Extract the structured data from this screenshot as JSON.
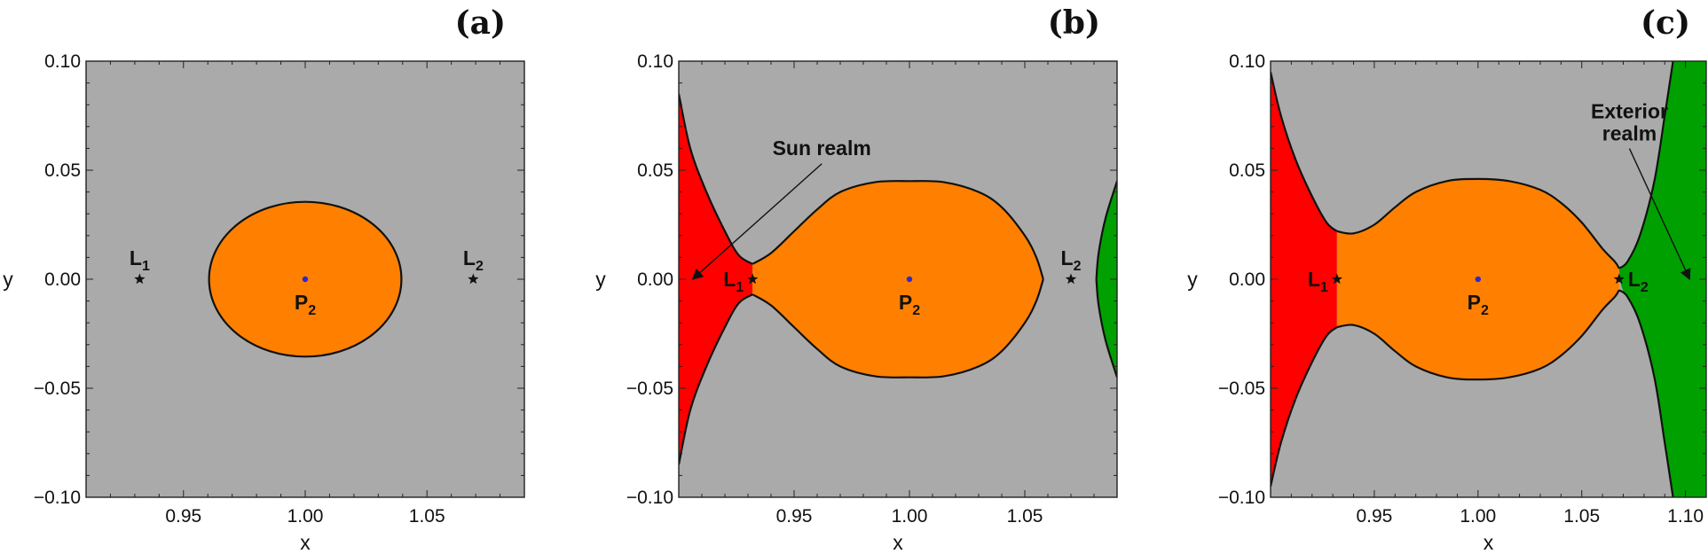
{
  "chart_data": [
    {
      "panel": "(a)",
      "type": "area",
      "xlabel": "x",
      "ylabel": "y",
      "xlim": [
        0.91,
        1.09
      ],
      "ylim": [
        -0.1,
        0.1
      ],
      "xticks": [
        0.95,
        1.0,
        1.05
      ],
      "xtick_labels": [
        "0.95",
        "1.00",
        "1.05"
      ],
      "yticks": [
        0.1,
        0.05,
        0.0,
        -0.05,
        -0.1
      ],
      "ytick_labels": [
        "0.10",
        "0.05",
        "0.00",
        "−0.05",
        "−0.10"
      ],
      "regions": [
        {
          "kind": "forbidden",
          "color": "#aaaaaa"
        },
        {
          "kind": "ellipse",
          "color": "#ff8000",
          "center": [
            1.0,
            0.0
          ],
          "rx": 0.0395,
          "ry": 0.0355
        }
      ],
      "points": [
        {
          "name": "L",
          "sub": "1",
          "x": 0.932,
          "y": 0.0,
          "marker": "star",
          "label_pos": "above"
        },
        {
          "name": "L",
          "sub": "2",
          "x": 1.069,
          "y": 0.0,
          "marker": "star",
          "label_pos": "above"
        },
        {
          "name": "P",
          "sub": "2",
          "x": 1.0,
          "y": 0.0,
          "marker": "dot",
          "color": "#2a2ad0",
          "label_pos": "below"
        }
      ],
      "annotations": []
    },
    {
      "panel": "(b)",
      "type": "area",
      "xlabel": "x",
      "ylabel": "y",
      "xlim": [
        0.9,
        1.09
      ],
      "ylim": [
        -0.1,
        0.1
      ],
      "xticks": [
        0.95,
        1.0,
        1.05
      ],
      "xtick_labels": [
        "0.95",
        "1.00",
        "1.05"
      ],
      "yticks": [
        0.1,
        0.05,
        0.0,
        -0.05,
        -0.1
      ],
      "ytick_labels": [
        "0.10",
        "0.05",
        "0.00",
        "−0.05",
        "−0.10"
      ],
      "regions": [
        {
          "kind": "forbidden",
          "color": "#aaaaaa"
        },
        {
          "kind": "red",
          "color": "#ff0000",
          "boundary": [
            [
              0.9,
              0.085
            ],
            [
              0.905,
              0.06
            ],
            [
              0.912,
              0.04
            ],
            [
              0.92,
              0.022
            ],
            [
              0.926,
              0.011
            ],
            [
              0.932,
              0.007
            ]
          ]
        },
        {
          "kind": "orange",
          "color": "#ff8000",
          "upper": [
            [
              0.932,
              0.007
            ],
            [
              0.94,
              0.012
            ],
            [
              0.95,
              0.022
            ],
            [
              0.96,
              0.032
            ],
            [
              0.97,
              0.04
            ],
            [
              0.985,
              0.0445
            ],
            [
              1.0,
              0.045
            ],
            [
              1.015,
              0.0445
            ],
            [
              1.03,
              0.04
            ],
            [
              1.04,
              0.033
            ],
            [
              1.05,
              0.02
            ],
            [
              1.055,
              0.01
            ],
            [
              1.058,
              0.0
            ]
          ]
        },
        {
          "kind": "green",
          "color": "#00a000",
          "boundary": [
            [
              1.09,
              0.045
            ],
            [
              1.085,
              0.028
            ],
            [
              1.082,
              0.012
            ],
            [
              1.081,
              0.0
            ]
          ]
        }
      ],
      "points": [
        {
          "name": "L",
          "sub": "1",
          "x": 0.932,
          "y": 0.0,
          "marker": "star",
          "label_pos": "left"
        },
        {
          "name": "L",
          "sub": "2",
          "x": 1.07,
          "y": 0.0,
          "marker": "star",
          "label_pos": "above"
        },
        {
          "name": "P",
          "sub": "2",
          "x": 1.0,
          "y": 0.0,
          "marker": "dot",
          "color": "#2a2ad0",
          "label_pos": "below"
        }
      ],
      "annotations": [
        {
          "lines": [
            "Sun realm"
          ],
          "text_x": 0.962,
          "text_y": 0.057,
          "arrow_to": [
            0.906,
            0.0
          ]
        }
      ]
    },
    {
      "panel": "(c)",
      "type": "area",
      "xlabel": "x",
      "ylabel": "y",
      "xlim": [
        0.9,
        1.11
      ],
      "ylim": [
        -0.1,
        0.1
      ],
      "xticks": [
        0.95,
        1.0,
        1.05,
        1.1
      ],
      "xtick_labels": [
        "0.95",
        "1.00",
        "1.05",
        "1.10"
      ],
      "yticks": [
        0.1,
        0.05,
        0.0,
        -0.05,
        -0.1
      ],
      "ytick_labels": [
        "0.10",
        "0.05",
        "0.00",
        "−0.05",
        "−0.10"
      ],
      "regions": [
        {
          "kind": "forbidden",
          "color": "#aaaaaa"
        },
        {
          "kind": "red",
          "color": "#ff0000",
          "boundary": [
            [
              0.9,
              0.095
            ],
            [
              0.905,
              0.075
            ],
            [
              0.912,
              0.055
            ],
            [
              0.92,
              0.038
            ],
            [
              0.927,
              0.026
            ],
            [
              0.932,
              0.022
            ]
          ]
        },
        {
          "kind": "orange",
          "color": "#ff8000",
          "upper": [
            [
              0.932,
              0.022
            ],
            [
              0.94,
              0.021
            ],
            [
              0.95,
              0.025
            ],
            [
              0.96,
              0.033
            ],
            [
              0.97,
              0.04
            ],
            [
              0.985,
              0.045
            ],
            [
              1.0,
              0.046
            ],
            [
              1.015,
              0.045
            ],
            [
              1.03,
              0.041
            ],
            [
              1.04,
              0.035
            ],
            [
              1.05,
              0.026
            ],
            [
              1.06,
              0.014
            ],
            [
              1.066,
              0.008
            ],
            [
              1.068,
              0.005
            ]
          ]
        },
        {
          "kind": "green",
          "color": "#00a000",
          "boundary": [
            [
              1.068,
              0.005
            ],
            [
              1.072,
              0.008
            ],
            [
              1.078,
              0.02
            ],
            [
              1.085,
              0.045
            ],
            [
              1.09,
              0.075
            ],
            [
              1.094,
              0.1
            ]
          ]
        }
      ],
      "points": [
        {
          "name": "L",
          "sub": "1",
          "x": 0.932,
          "y": 0.0,
          "marker": "star",
          "label_pos": "left"
        },
        {
          "name": "L",
          "sub": "2",
          "x": 1.068,
          "y": 0.0,
          "marker": "star",
          "label_pos": "right"
        },
        {
          "name": "P",
          "sub": "2",
          "x": 1.0,
          "y": 0.0,
          "marker": "dot",
          "color": "#2a2ad0",
          "label_pos": "below"
        }
      ],
      "annotations": [
        {
          "lines": [
            "Exterior",
            "realm"
          ],
          "text_x": 1.073,
          "text_y": 0.064,
          "arrow_to": [
            1.102,
            0.0
          ]
        }
      ]
    }
  ]
}
